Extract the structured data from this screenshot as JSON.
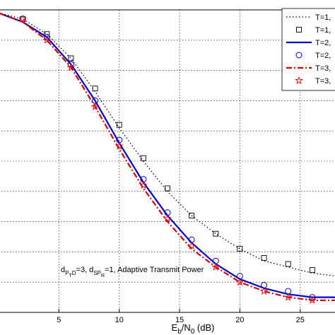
{
  "chart_data": {
    "type": "line",
    "title": "",
    "xlabel": {
      "base": "E",
      "sub1": "b",
      "mid": "/N",
      "sub2": "0",
      "tail": " (dB)"
    },
    "ylabel": "",
    "xlim": [
      0,
      28
    ],
    "ylim": [
      0,
      1
    ],
    "grid": true,
    "legend_placement": "top-right",
    "x_ticks": [
      5,
      10,
      15,
      20,
      25
    ],
    "annotation": {
      "p1": "d",
      "s1": "P",
      "ss1": "T",
      "s2": "D",
      "p2": "=3, d",
      "s3": "SP",
      "ss2": "R",
      "p3": "=1, Adaptive Transmit Power"
    },
    "series": [
      {
        "name": "T=1,",
        "style": "dotted",
        "color": "#000000",
        "x": [
          0,
          2,
          4,
          6,
          8,
          10,
          12,
          14,
          16,
          18,
          20,
          22,
          24,
          26,
          28
        ],
        "y": [
          0.99,
          0.97,
          0.92,
          0.84,
          0.73,
          0.61,
          0.5,
          0.4,
          0.32,
          0.26,
          0.21,
          0.17,
          0.15,
          0.13,
          0.12
        ]
      },
      {
        "name": "T=1,",
        "style": "square",
        "color": "#000000",
        "x": [
          2,
          4,
          6,
          8,
          10,
          12,
          14,
          16,
          18,
          20,
          22,
          24,
          26
        ],
        "y": [
          0.97,
          0.92,
          0.84,
          0.74,
          0.62,
          0.51,
          0.41,
          0.32,
          0.26,
          0.21,
          0.18,
          0.16,
          0.14
        ]
      },
      {
        "name": "T=2,",
        "style": "solid",
        "color": "#0000cc",
        "x": [
          0,
          2,
          4,
          6,
          8,
          10,
          12,
          14,
          16,
          18,
          20,
          22,
          24,
          26,
          28
        ],
        "y": [
          0.99,
          0.96,
          0.91,
          0.82,
          0.7,
          0.56,
          0.43,
          0.32,
          0.23,
          0.16,
          0.11,
          0.08,
          0.06,
          0.05,
          0.05
        ]
      },
      {
        "name": "T=2,",
        "style": "circle",
        "color": "#0000cc",
        "x": [
          2,
          4,
          6,
          8,
          10,
          12,
          14,
          16,
          18,
          20,
          22,
          24,
          26
        ],
        "y": [
          0.97,
          0.91,
          0.82,
          0.7,
          0.57,
          0.44,
          0.33,
          0.24,
          0.17,
          0.12,
          0.09,
          0.07,
          0.05
        ]
      },
      {
        "name": "T=3,",
        "style": "dashdot",
        "color": "#dd0000",
        "x": [
          0,
          2,
          4,
          6,
          8,
          10,
          12,
          14,
          16,
          18,
          20,
          22,
          24,
          26,
          28
        ],
        "y": [
          0.99,
          0.96,
          0.9,
          0.81,
          0.68,
          0.54,
          0.41,
          0.3,
          0.21,
          0.15,
          0.1,
          0.07,
          0.05,
          0.04,
          0.04
        ]
      },
      {
        "name": "T=3,",
        "style": "star",
        "color": "#dd0000",
        "x": [
          2,
          4,
          6,
          8,
          10,
          12,
          14,
          16,
          18,
          20,
          22,
          24,
          26
        ],
        "y": [
          0.97,
          0.9,
          0.81,
          0.68,
          0.55,
          0.42,
          0.31,
          0.22,
          0.15,
          0.1,
          0.07,
          0.05,
          0.04
        ]
      }
    ]
  }
}
